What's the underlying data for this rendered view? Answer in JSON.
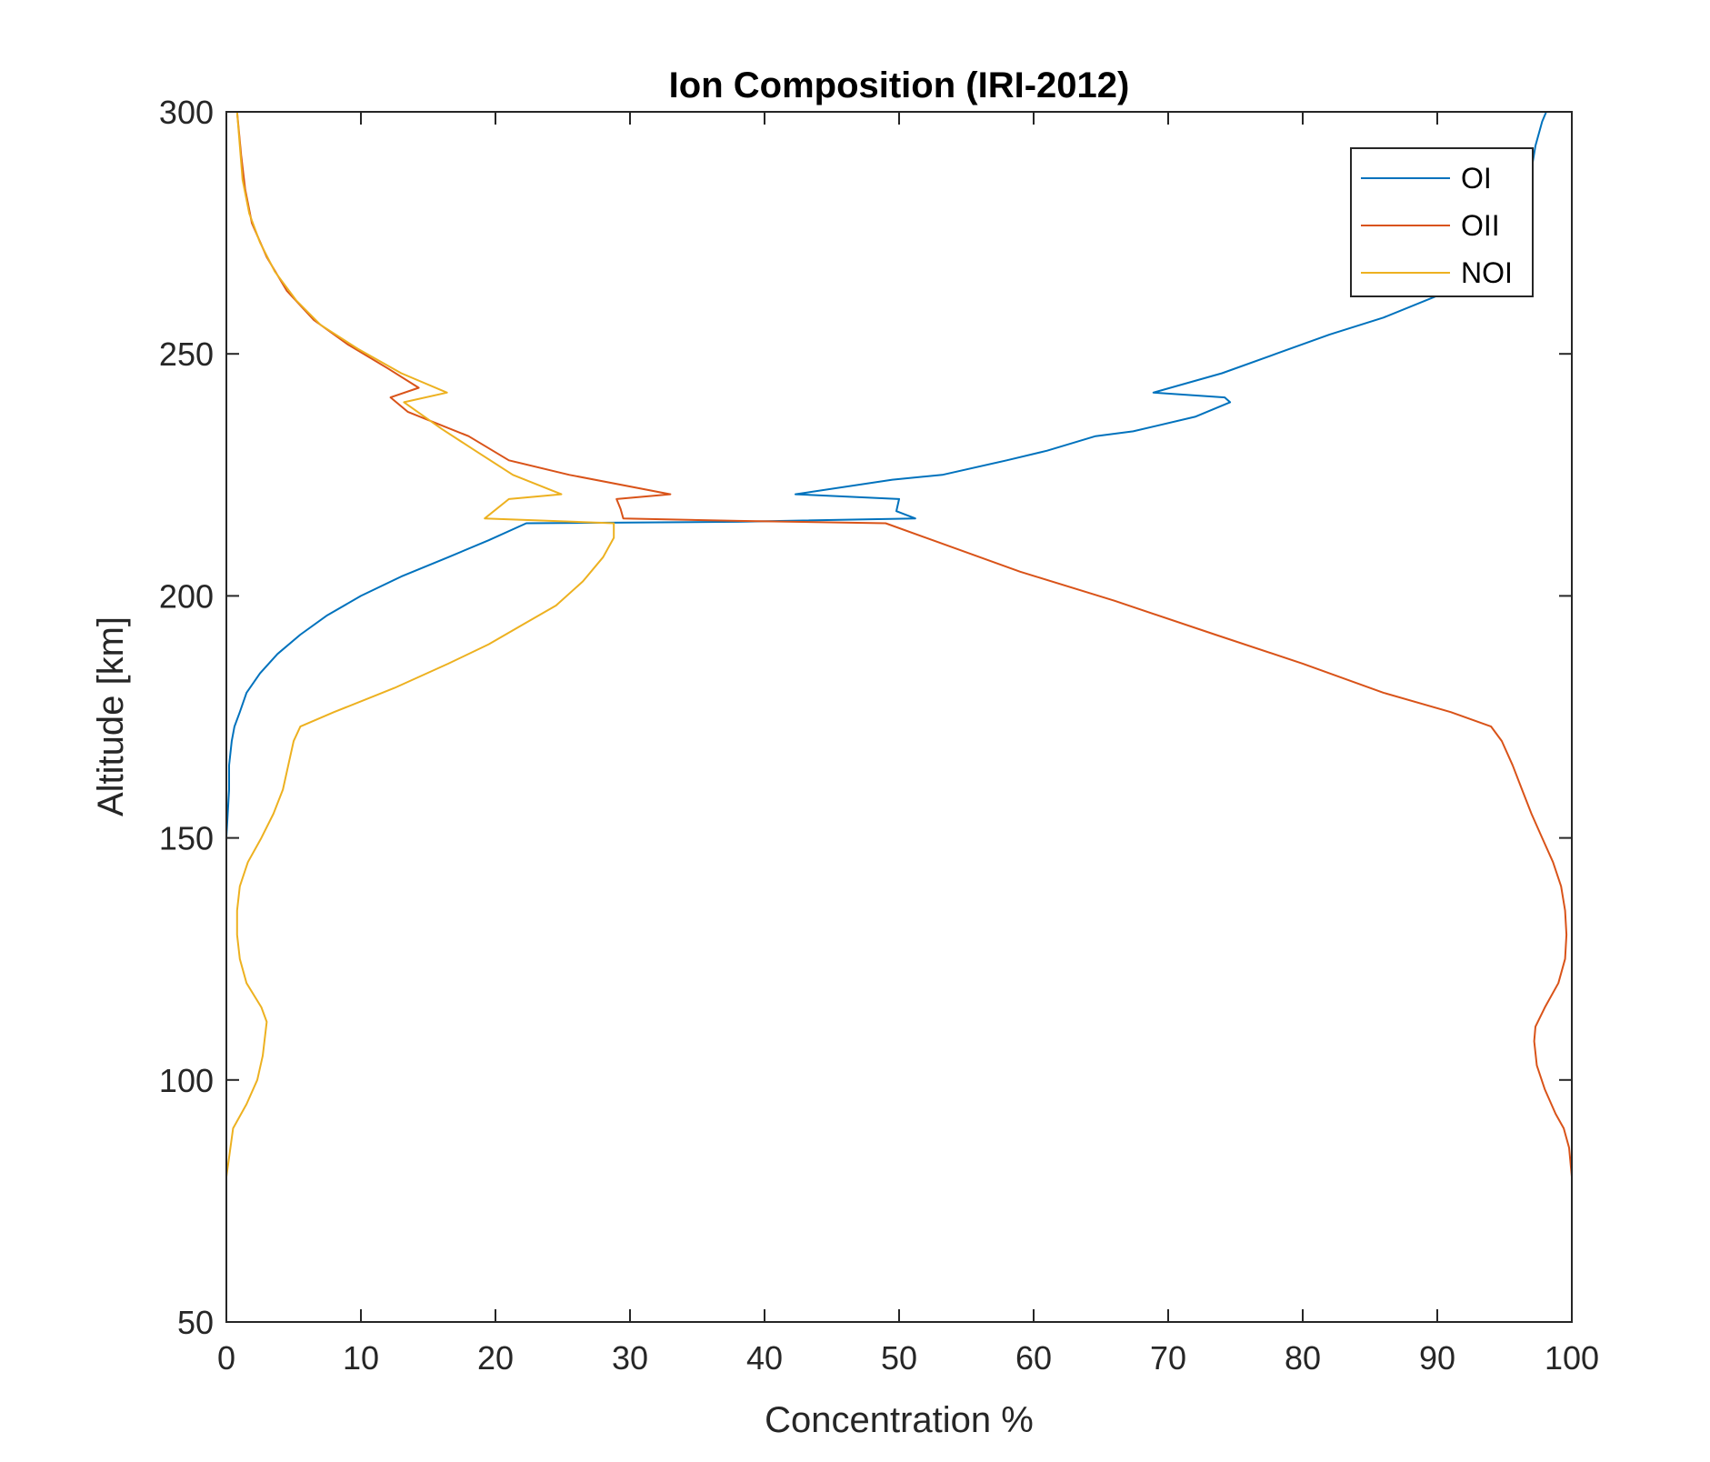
{
  "chart_data": {
    "type": "line",
    "title": "Ion Composition (IRI-2012)",
    "xlabel": "Concentration %",
    "ylabel": "Altitude [km]",
    "xlim": [
      0,
      100
    ],
    "ylim": [
      50,
      300
    ],
    "xticks": [
      0,
      10,
      20,
      30,
      40,
      50,
      60,
      70,
      80,
      90,
      100
    ],
    "yticks": [
      50,
      100,
      150,
      200,
      250,
      300
    ],
    "grid": false,
    "legend_position": "top-right",
    "series": [
      {
        "name": "OI",
        "color": "#0072BD",
        "points": [
          [
            0,
            80
          ],
          [
            0,
            100
          ],
          [
            0,
            130
          ],
          [
            0,
            150
          ],
          [
            0.1,
            155
          ],
          [
            0.2,
            160
          ],
          [
            0.2,
            165
          ],
          [
            0.4,
            170
          ],
          [
            0.6,
            173
          ],
          [
            1,
            176
          ],
          [
            1.5,
            180
          ],
          [
            2.5,
            184
          ],
          [
            3.8,
            188
          ],
          [
            5.5,
            192
          ],
          [
            7.5,
            196
          ],
          [
            10,
            200
          ],
          [
            13,
            204
          ],
          [
            16.5,
            208
          ],
          [
            19.5,
            211.5
          ],
          [
            22.3,
            215
          ],
          [
            38,
            215.3
          ],
          [
            51.2,
            216
          ],
          [
            49.8,
            217.5
          ],
          [
            50,
            220
          ],
          [
            42.3,
            221
          ],
          [
            49.5,
            224
          ],
          [
            53.2,
            225
          ],
          [
            58,
            228
          ],
          [
            61,
            230
          ],
          [
            64.6,
            233
          ],
          [
            67.4,
            234
          ],
          [
            72,
            237
          ],
          [
            74.6,
            240
          ],
          [
            74.2,
            241
          ],
          [
            68.9,
            242
          ],
          [
            74,
            246
          ],
          [
            78,
            250
          ],
          [
            82,
            254
          ],
          [
            86,
            257.5
          ],
          [
            90,
            262
          ],
          [
            93,
            267
          ],
          [
            95.5,
            274
          ],
          [
            96.5,
            281
          ],
          [
            97,
            288
          ],
          [
            97.3,
            293
          ],
          [
            97.8,
            298
          ],
          [
            98.1,
            300
          ]
        ]
      },
      {
        "name": "OII",
        "color": "#D95319",
        "points": [
          [
            100,
            80
          ],
          [
            99.8,
            86
          ],
          [
            99.4,
            90
          ],
          [
            98.8,
            93
          ],
          [
            98,
            98
          ],
          [
            97.4,
            103
          ],
          [
            97.2,
            108
          ],
          [
            97.3,
            111
          ],
          [
            98,
            115
          ],
          [
            99,
            120
          ],
          [
            99.5,
            125
          ],
          [
            99.6,
            130
          ],
          [
            99.5,
            135
          ],
          [
            99.2,
            140
          ],
          [
            98.6,
            145
          ],
          [
            97.8,
            150
          ],
          [
            97,
            155
          ],
          [
            96.3,
            160
          ],
          [
            95.6,
            165
          ],
          [
            94.8,
            170
          ],
          [
            94,
            173
          ],
          [
            91,
            176
          ],
          [
            86,
            180
          ],
          [
            80,
            186
          ],
          [
            73.5,
            192
          ],
          [
            66,
            199
          ],
          [
            59,
            205
          ],
          [
            53,
            211
          ],
          [
            49,
            215
          ],
          [
            38,
            215.5
          ],
          [
            29.5,
            216
          ],
          [
            29.3,
            218
          ],
          [
            29,
            220
          ],
          [
            33,
            221
          ],
          [
            25.5,
            225
          ],
          [
            21,
            228
          ],
          [
            18,
            233
          ],
          [
            13.5,
            238
          ],
          [
            12.2,
            241
          ],
          [
            14.3,
            243
          ],
          [
            12,
            247
          ],
          [
            9,
            252
          ],
          [
            6.5,
            257
          ],
          [
            4.5,
            263
          ],
          [
            3,
            270
          ],
          [
            1.9,
            277
          ],
          [
            1.4,
            284
          ],
          [
            1.1,
            291
          ],
          [
            0.8,
            300
          ]
        ]
      },
      {
        "name": "NOI",
        "color": "#EDB120",
        "points": [
          [
            0,
            80
          ],
          [
            0.2,
            84
          ],
          [
            0.5,
            90
          ],
          [
            1.5,
            95
          ],
          [
            2.3,
            100
          ],
          [
            2.7,
            105
          ],
          [
            3,
            112
          ],
          [
            2.6,
            115
          ],
          [
            1.5,
            120
          ],
          [
            1,
            125
          ],
          [
            0.8,
            130
          ],
          [
            0.8,
            135
          ],
          [
            1,
            140
          ],
          [
            1.6,
            145
          ],
          [
            2.6,
            150
          ],
          [
            3.5,
            155
          ],
          [
            4.2,
            160
          ],
          [
            4.6,
            165
          ],
          [
            5,
            170
          ],
          [
            5.5,
            173
          ],
          [
            8,
            176
          ],
          [
            12.5,
            181
          ],
          [
            16.5,
            186
          ],
          [
            19.5,
            190
          ],
          [
            22,
            194
          ],
          [
            24.5,
            198
          ],
          [
            26.5,
            203
          ],
          [
            28,
            208
          ],
          [
            28.8,
            212
          ],
          [
            28.8,
            215
          ],
          [
            19.2,
            216
          ],
          [
            21,
            220
          ],
          [
            24.9,
            221
          ],
          [
            21.3,
            225
          ],
          [
            18.5,
            230
          ],
          [
            16,
            234.5
          ],
          [
            13.2,
            240
          ],
          [
            16.4,
            242
          ],
          [
            13,
            246
          ],
          [
            9.8,
            251
          ],
          [
            7,
            256
          ],
          [
            5.2,
            261
          ],
          [
            3.6,
            267
          ],
          [
            2.5,
            273
          ],
          [
            1.7,
            279
          ],
          [
            1.2,
            286
          ],
          [
            1,
            293
          ],
          [
            0.8,
            300
          ]
        ]
      }
    ]
  }
}
